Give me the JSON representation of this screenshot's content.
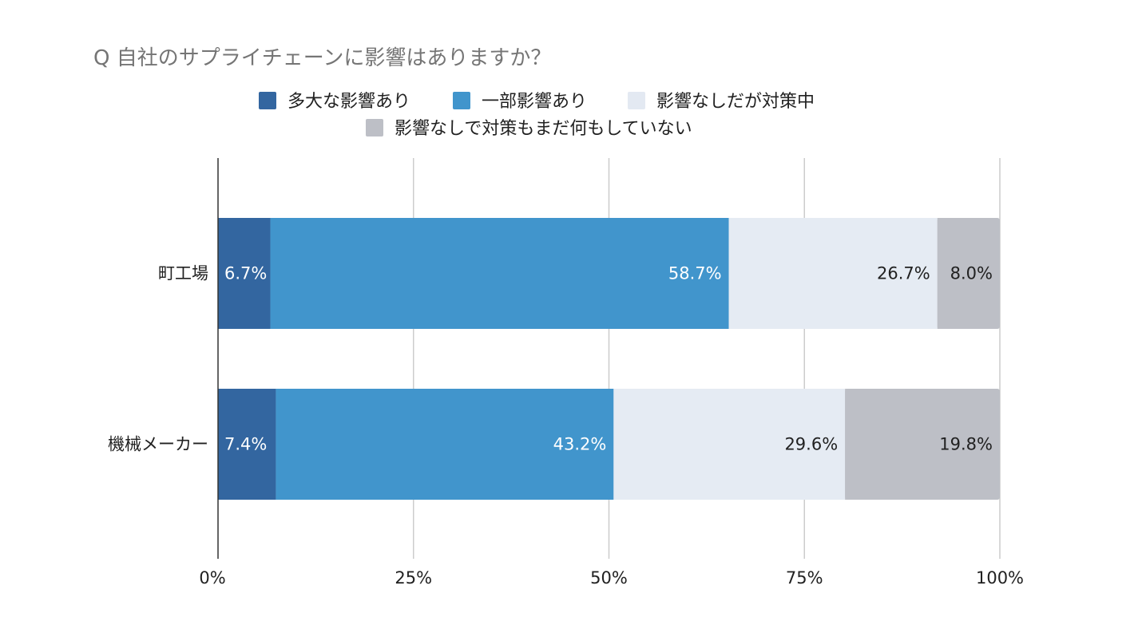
{
  "chart_data": {
    "type": "bar",
    "orientation": "horizontal",
    "stacked": "percent",
    "title": "Q 自社のサプライチェーンに影響はありますか？",
    "xlabel": "",
    "ylabel": "",
    "categories": [
      "町工場",
      "機械メーカー"
    ],
    "series": [
      {
        "name": "多大な影響あり",
        "values": [
          6.7,
          7.4
        ],
        "labels": [
          "6.7%",
          "7.4%"
        ],
        "color": "#3366a0",
        "label_color": "#ffffff"
      },
      {
        "name": "一部影響あり",
        "values": [
          58.7,
          43.2
        ],
        "labels": [
          "58.7%",
          "43.2%"
        ],
        "color": "#4195cc",
        "label_color": "#ffffff"
      },
      {
        "name": "影響なしだが対策中",
        "values": [
          26.7,
          29.6
        ],
        "labels": [
          "26.7%",
          "29.6%"
        ],
        "color": "#e5ebf3",
        "label_color": "#212121"
      },
      {
        "name": "影響なしで対策もまだ何もしていない",
        "values": [
          8.0,
          19.8
        ],
        "labels": [
          "8.0%",
          "19.8%"
        ],
        "color": "#bdbfc6",
        "label_color": "#212121"
      }
    ],
    "xlim": [
      0,
      100
    ],
    "xticks": [
      0,
      25,
      50,
      75,
      100
    ],
    "xtick_labels": [
      "0%",
      "25%",
      "50%",
      "75%",
      "100%"
    ],
    "grid": true,
    "legend_position": "top"
  }
}
